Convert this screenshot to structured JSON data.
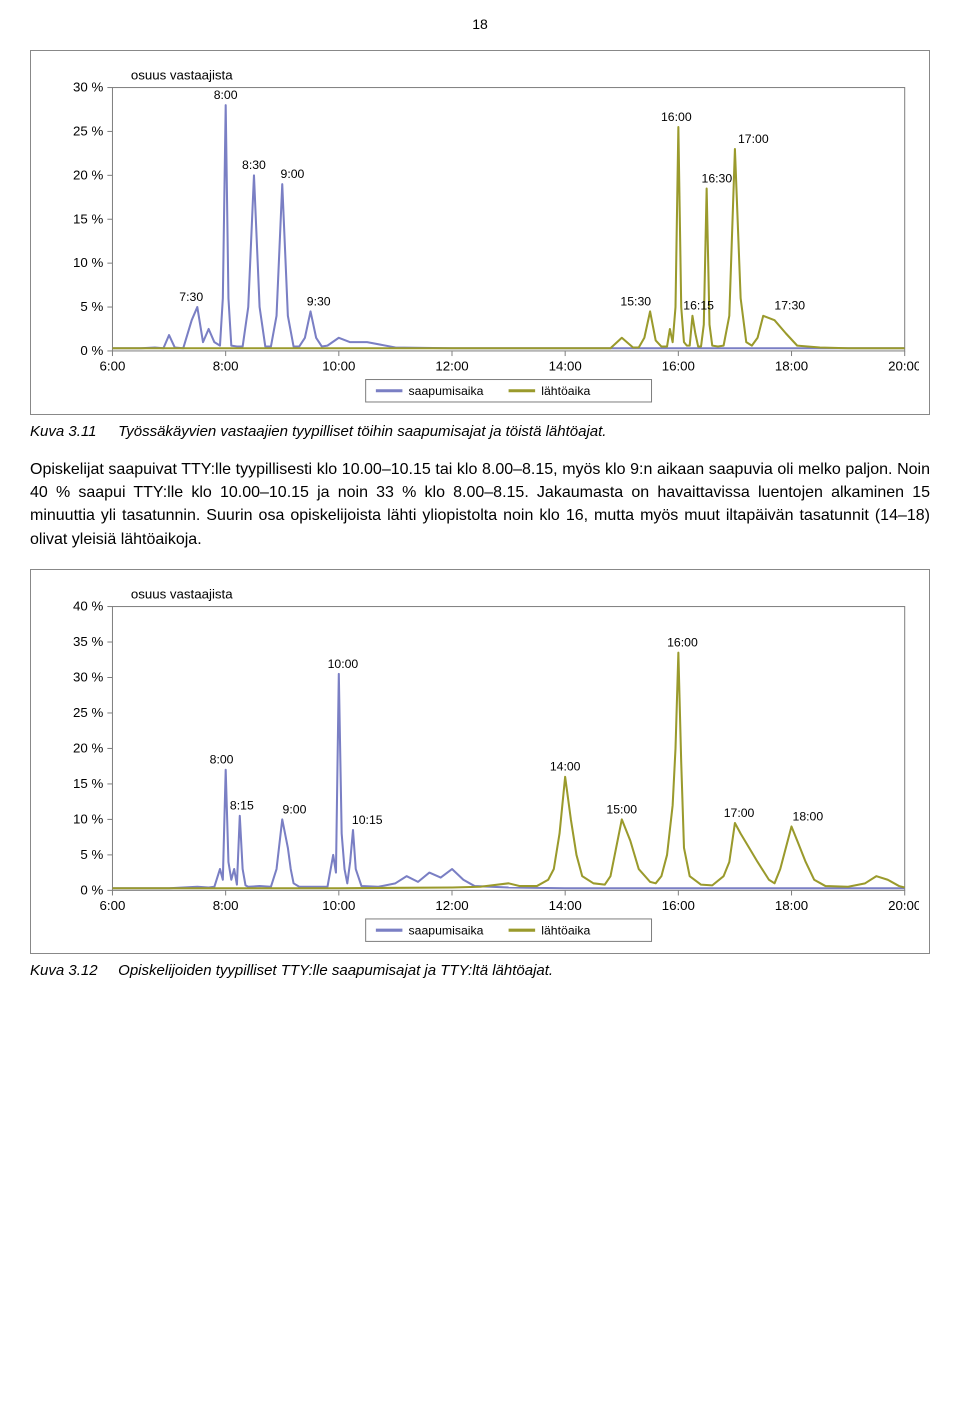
{
  "page": {
    "number": "18",
    "body_text": "Opiskelijat saapuivat TTY:lle tyypillisesti klo 10.00–10.15 tai klo 8.00–8.15, myös klo 9:n aikaan saapuvia oli melko paljon. Noin 40 % saapui TTY:lle klo 10.00–10.15 ja noin 33 % klo 8.00–8.15. Jakaumasta on havaittavissa luentojen alkaminen 15 minuuttia yli tasatunnin. Suurin osa opiskelijoista lähti yliopistolta noin klo 16, mutta myös muut iltapäivän tasatunnit (14–18) olivat yleisiä lähtöaikoja."
  },
  "chart1": {
    "type": "line",
    "caption_label": "Kuva 3.11",
    "caption": "Työssäkäyvien vastaajien tyypilliset töihin saapumisajat ja töistä lähtöajat.",
    "title": "osuus vastaajista",
    "title_fontsize": 13,
    "axis_fontsize": 13,
    "peak_label_fontsize": 12,
    "background_color": "#ffffff",
    "plot_border_color": "#808080",
    "grid": false,
    "x": {
      "min": 6.0,
      "max": 20.0,
      "ticks": [
        6,
        8,
        10,
        12,
        14,
        16,
        18,
        20
      ],
      "tick_labels": [
        "6:00",
        "8:00",
        "10:00",
        "12:00",
        "14:00",
        "16:00",
        "18:00",
        "20:00"
      ]
    },
    "y": {
      "min": 0,
      "max": 30,
      "step": 5,
      "suffix": " %"
    },
    "legend": {
      "items": [
        {
          "label": "saapumisaika",
          "color": "#7a7fc4"
        },
        {
          "label": "lähtöaika",
          "color": "#9a9a2c"
        }
      ]
    },
    "series": [
      {
        "name": "saapumisaika",
        "color": "#7a7fc4",
        "line_width": 2,
        "points": [
          [
            6.0,
            0.3
          ],
          [
            6.25,
            0.3
          ],
          [
            6.5,
            0.3
          ],
          [
            6.75,
            0.4
          ],
          [
            6.9,
            0.3
          ],
          [
            7.0,
            1.8
          ],
          [
            7.1,
            0.4
          ],
          [
            7.25,
            0.3
          ],
          [
            7.4,
            3.5
          ],
          [
            7.5,
            5.0
          ],
          [
            7.6,
            1.0
          ],
          [
            7.7,
            2.5
          ],
          [
            7.8,
            1.0
          ],
          [
            7.9,
            0.6
          ],
          [
            7.95,
            6.0
          ],
          [
            8.0,
            28.0
          ],
          [
            8.05,
            6.0
          ],
          [
            8.1,
            0.6
          ],
          [
            8.2,
            0.5
          ],
          [
            8.3,
            0.5
          ],
          [
            8.4,
            5.0
          ],
          [
            8.5,
            20.0
          ],
          [
            8.6,
            5.0
          ],
          [
            8.7,
            0.5
          ],
          [
            8.8,
            0.5
          ],
          [
            8.9,
            4.0
          ],
          [
            9.0,
            19.0
          ],
          [
            9.1,
            4.0
          ],
          [
            9.2,
            0.5
          ],
          [
            9.3,
            0.5
          ],
          [
            9.4,
            1.5
          ],
          [
            9.5,
            4.5
          ],
          [
            9.6,
            1.5
          ],
          [
            9.7,
            0.5
          ],
          [
            9.8,
            0.6
          ],
          [
            10.0,
            1.5
          ],
          [
            10.2,
            1.0
          ],
          [
            10.5,
            1.0
          ],
          [
            11.0,
            0.4
          ],
          [
            12.0,
            0.3
          ],
          [
            13.0,
            0.3
          ],
          [
            14.0,
            0.3
          ],
          [
            15.0,
            0.3
          ],
          [
            16.0,
            0.3
          ],
          [
            17.0,
            0.3
          ],
          [
            18.0,
            0.3
          ],
          [
            19.0,
            0.3
          ],
          [
            20.0,
            0.3
          ]
        ],
        "peak_labels": [
          {
            "x": 7.5,
            "y": 5.0,
            "text": "7:30",
            "dy": -6,
            "dx": -6
          },
          {
            "x": 8.0,
            "y": 28.0,
            "text": "8:00",
            "dy": -6,
            "dx": 0
          },
          {
            "x": 8.5,
            "y": 20.0,
            "text": "8:30",
            "dy": -6,
            "dx": 0
          },
          {
            "x": 9.0,
            "y": 19.0,
            "text": "9:00",
            "dy": -6,
            "dx": 10
          },
          {
            "x": 9.5,
            "y": 4.5,
            "text": "9:30",
            "dy": -6,
            "dx": 8
          }
        ]
      },
      {
        "name": "lähtöaika",
        "color": "#9a9a2c",
        "line_width": 2,
        "points": [
          [
            6.0,
            0.3
          ],
          [
            8.0,
            0.3
          ],
          [
            10.0,
            0.3
          ],
          [
            12.0,
            0.3
          ],
          [
            14.0,
            0.3
          ],
          [
            14.8,
            0.3
          ],
          [
            15.0,
            1.5
          ],
          [
            15.2,
            0.4
          ],
          [
            15.3,
            0.4
          ],
          [
            15.4,
            1.5
          ],
          [
            15.5,
            4.5
          ],
          [
            15.6,
            1.2
          ],
          [
            15.7,
            0.5
          ],
          [
            15.8,
            0.5
          ],
          [
            15.85,
            2.5
          ],
          [
            15.9,
            1.0
          ],
          [
            15.95,
            5.0
          ],
          [
            16.0,
            25.5
          ],
          [
            16.05,
            5.0
          ],
          [
            16.1,
            1.0
          ],
          [
            16.15,
            0.6
          ],
          [
            16.2,
            0.6
          ],
          [
            16.25,
            4.0
          ],
          [
            16.3,
            2.0
          ],
          [
            16.35,
            0.5
          ],
          [
            16.4,
            0.5
          ],
          [
            16.45,
            3.0
          ],
          [
            16.5,
            18.5
          ],
          [
            16.55,
            3.0
          ],
          [
            16.6,
            0.6
          ],
          [
            16.7,
            0.5
          ],
          [
            16.8,
            0.6
          ],
          [
            16.9,
            4.0
          ],
          [
            17.0,
            23.0
          ],
          [
            17.1,
            6.0
          ],
          [
            17.2,
            1.0
          ],
          [
            17.3,
            0.6
          ],
          [
            17.4,
            1.5
          ],
          [
            17.5,
            4.0
          ],
          [
            17.7,
            3.5
          ],
          [
            17.9,
            2.0
          ],
          [
            18.1,
            0.6
          ],
          [
            18.5,
            0.4
          ],
          [
            19.0,
            0.3
          ],
          [
            20.0,
            0.3
          ]
        ],
        "peak_labels": [
          {
            "x": 15.5,
            "y": 4.5,
            "text": "15:30",
            "dy": -6,
            "dx": -14
          },
          {
            "x": 16.0,
            "y": 25.5,
            "text": "16:00",
            "dy": -6,
            "dx": -2
          },
          {
            "x": 16.25,
            "y": 4.0,
            "text": "16:15",
            "dy": -6,
            "dx": 6
          },
          {
            "x": 16.5,
            "y": 18.5,
            "text": "16:30",
            "dy": -6,
            "dx": 10
          },
          {
            "x": 17.0,
            "y": 23.0,
            "text": "17:00",
            "dy": -6,
            "dx": 18
          },
          {
            "x": 17.5,
            "y": 4.0,
            "text": "17:30",
            "dy": -6,
            "dx": 26
          }
        ]
      }
    ]
  },
  "chart2": {
    "type": "line",
    "caption_label": "Kuva 3.12",
    "caption": "Opiskelijoiden tyypilliset TTY:lle saapumisajat ja TTY:ltä lähtöajat.",
    "title": "osuus vastaajista",
    "title_fontsize": 13,
    "axis_fontsize": 13,
    "peak_label_fontsize": 12,
    "background_color": "#ffffff",
    "plot_border_color": "#808080",
    "grid": false,
    "x": {
      "min": 6.0,
      "max": 20.0,
      "ticks": [
        6,
        8,
        10,
        12,
        14,
        16,
        18,
        20
      ],
      "tick_labels": [
        "6:00",
        "8:00",
        "10:00",
        "12:00",
        "14:00",
        "16:00",
        "18:00",
        "20:00"
      ]
    },
    "y": {
      "min": 0,
      "max": 40,
      "step": 5,
      "suffix": " %"
    },
    "legend": {
      "items": [
        {
          "label": "saapumisaika",
          "color": "#7a7fc4"
        },
        {
          "label": "lähtöaika",
          "color": "#9a9a2c"
        }
      ]
    },
    "series": [
      {
        "name": "saapumisaika",
        "color": "#7a7fc4",
        "line_width": 2,
        "points": [
          [
            6.0,
            0.3
          ],
          [
            7.0,
            0.3
          ],
          [
            7.5,
            0.5
          ],
          [
            7.7,
            0.4
          ],
          [
            7.8,
            0.5
          ],
          [
            7.9,
            3.0
          ],
          [
            7.95,
            1.5
          ],
          [
            8.0,
            17.0
          ],
          [
            8.05,
            4.0
          ],
          [
            8.1,
            1.5
          ],
          [
            8.15,
            3.0
          ],
          [
            8.2,
            0.8
          ],
          [
            8.25,
            10.5
          ],
          [
            8.3,
            3.0
          ],
          [
            8.35,
            0.7
          ],
          [
            8.4,
            0.5
          ],
          [
            8.6,
            0.6
          ],
          [
            8.8,
            0.5
          ],
          [
            8.9,
            3.0
          ],
          [
            9.0,
            10.0
          ],
          [
            9.1,
            6.0
          ],
          [
            9.15,
            3.0
          ],
          [
            9.2,
            1.0
          ],
          [
            9.3,
            0.5
          ],
          [
            9.5,
            0.5
          ],
          [
            9.8,
            0.5
          ],
          [
            9.9,
            5.0
          ],
          [
            9.95,
            2.5
          ],
          [
            10.0,
            30.5
          ],
          [
            10.05,
            8.0
          ],
          [
            10.1,
            3.0
          ],
          [
            10.15,
            1.0
          ],
          [
            10.2,
            4.0
          ],
          [
            10.25,
            8.5
          ],
          [
            10.3,
            3.0
          ],
          [
            10.4,
            0.6
          ],
          [
            10.7,
            0.5
          ],
          [
            11.0,
            1.0
          ],
          [
            11.2,
            2.0
          ],
          [
            11.4,
            1.2
          ],
          [
            11.6,
            2.5
          ],
          [
            11.8,
            1.8
          ],
          [
            12.0,
            3.0
          ],
          [
            12.2,
            1.5
          ],
          [
            12.4,
            0.6
          ],
          [
            13.0,
            0.4
          ],
          [
            14.0,
            0.3
          ],
          [
            16.0,
            0.3
          ],
          [
            18.0,
            0.3
          ],
          [
            20.0,
            0.3
          ]
        ],
        "peak_labels": [
          {
            "x": 8.0,
            "y": 17.0,
            "text": "8:00",
            "dy": -6,
            "dx": -4
          },
          {
            "x": 8.25,
            "y": 10.5,
            "text": "8:15",
            "dy": -6,
            "dx": 2
          },
          {
            "x": 9.0,
            "y": 10.0,
            "text": "9:00",
            "dy": -6,
            "dx": 12
          },
          {
            "x": 10.0,
            "y": 30.5,
            "text": "10:00",
            "dy": -6,
            "dx": 4
          },
          {
            "x": 10.25,
            "y": 8.5,
            "text": "10:15",
            "dy": -6,
            "dx": 14
          }
        ]
      },
      {
        "name": "lähtöaika",
        "color": "#9a9a2c",
        "line_width": 2,
        "points": [
          [
            6.0,
            0.3
          ],
          [
            10.0,
            0.3
          ],
          [
            12.0,
            0.4
          ],
          [
            12.5,
            0.5
          ],
          [
            13.0,
            1.0
          ],
          [
            13.2,
            0.6
          ],
          [
            13.5,
            0.6
          ],
          [
            13.7,
            1.5
          ],
          [
            13.8,
            3.0
          ],
          [
            13.9,
            8.0
          ],
          [
            14.0,
            16.0
          ],
          [
            14.1,
            10.0
          ],
          [
            14.2,
            5.0
          ],
          [
            14.3,
            2.0
          ],
          [
            14.5,
            1.0
          ],
          [
            14.7,
            0.8
          ],
          [
            14.8,
            2.0
          ],
          [
            15.0,
            10.0
          ],
          [
            15.15,
            7.0
          ],
          [
            15.3,
            3.0
          ],
          [
            15.5,
            1.2
          ],
          [
            15.6,
            1.0
          ],
          [
            15.7,
            2.0
          ],
          [
            15.8,
            5.0
          ],
          [
            15.9,
            12.0
          ],
          [
            15.95,
            20.0
          ],
          [
            16.0,
            33.5
          ],
          [
            16.05,
            18.0
          ],
          [
            16.1,
            6.0
          ],
          [
            16.2,
            2.0
          ],
          [
            16.4,
            0.8
          ],
          [
            16.6,
            0.7
          ],
          [
            16.8,
            2.0
          ],
          [
            16.9,
            4.0
          ],
          [
            17.0,
            9.5
          ],
          [
            17.1,
            8.0
          ],
          [
            17.25,
            6.0
          ],
          [
            17.4,
            4.0
          ],
          [
            17.6,
            1.5
          ],
          [
            17.7,
            1.0
          ],
          [
            17.8,
            3.0
          ],
          [
            17.9,
            6.0
          ],
          [
            18.0,
            9.0
          ],
          [
            18.1,
            7.0
          ],
          [
            18.25,
            4.0
          ],
          [
            18.4,
            1.5
          ],
          [
            18.6,
            0.6
          ],
          [
            19.0,
            0.5
          ],
          [
            19.3,
            1.0
          ],
          [
            19.5,
            2.0
          ],
          [
            19.7,
            1.5
          ],
          [
            19.9,
            0.6
          ],
          [
            20.0,
            0.4
          ]
        ],
        "peak_labels": [
          {
            "x": 14.0,
            "y": 16.0,
            "text": "14:00",
            "dy": -6,
            "dx": 0
          },
          {
            "x": 15.0,
            "y": 10.0,
            "text": "15:00",
            "dy": -6,
            "dx": 0
          },
          {
            "x": 16.0,
            "y": 33.5,
            "text": "16:00",
            "dy": -6,
            "dx": 4
          },
          {
            "x": 17.0,
            "y": 9.5,
            "text": "17:00",
            "dy": -6,
            "dx": 4
          },
          {
            "x": 18.0,
            "y": 9.0,
            "text": "18:00",
            "dy": -6,
            "dx": 16
          }
        ]
      }
    ]
  }
}
